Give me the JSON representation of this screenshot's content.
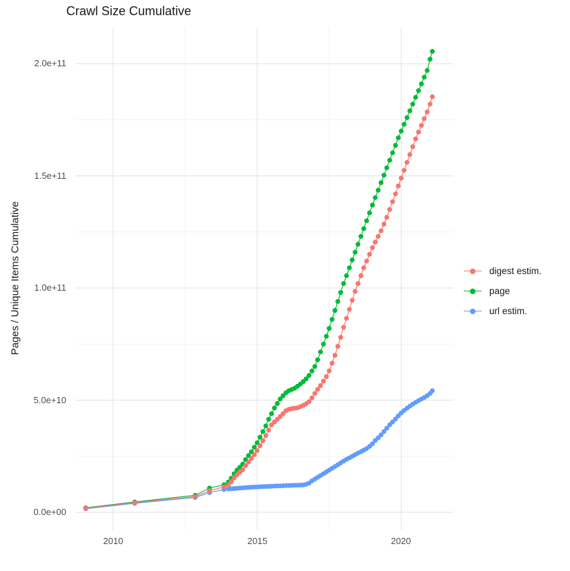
{
  "title": "Crawl Size Cumulative",
  "chart_data": {
    "type": "line",
    "title": "Crawl Size Cumulative",
    "xlabel": "",
    "ylabel": "Pages / Unique Items Cumulative",
    "legend_position": "right",
    "grid": "on",
    "values_unit": "1e9 (points stored in billions of pages / items)",
    "x_domain": [
      2008.71,
      2021.81
    ],
    "y_domain_e9": [
      -7.7,
      216.1
    ],
    "x_ticks": [
      {
        "v": 2010,
        "label": "2010"
      },
      {
        "v": 2015,
        "label": "2015"
      },
      {
        "v": 2020,
        "label": "2020"
      }
    ],
    "x_minor": [
      2012.5,
      2017.5
    ],
    "y_ticks": [
      {
        "v": 0,
        "label": "0.0e+00"
      },
      {
        "v": 50,
        "label": "5.0e+10"
      },
      {
        "v": 100,
        "label": "1.0e+11"
      },
      {
        "v": 150,
        "label": "1.5e+11"
      },
      {
        "v": 200,
        "label": "2.0e+11"
      }
    ],
    "y_minor": [
      25,
      75,
      125,
      175
    ],
    "draw_order": [
      2,
      1,
      0
    ],
    "series": [
      {
        "name": "digest estim.",
        "color": "#F8766D",
        "points": [
          [
            2009.05,
            1.8
          ],
          [
            2010.75,
            4.3
          ],
          [
            2012.85,
            7.0
          ],
          [
            2013.35,
            9.6
          ],
          [
            2013.85,
            11.4
          ],
          [
            2014.0,
            12.2
          ],
          [
            2014.1,
            13.6
          ],
          [
            2014.2,
            15.3
          ],
          [
            2014.3,
            16.7
          ],
          [
            2014.4,
            17.9
          ],
          [
            2014.5,
            19.0
          ],
          [
            2014.6,
            20.8
          ],
          [
            2014.7,
            22.4
          ],
          [
            2014.8,
            24.0
          ],
          [
            2014.9,
            25.7
          ],
          [
            2015.0,
            27.5
          ],
          [
            2015.1,
            29.7
          ],
          [
            2015.2,
            31.9
          ],
          [
            2015.3,
            34.2
          ],
          [
            2015.4,
            36.7
          ],
          [
            2015.5,
            39.0
          ],
          [
            2015.6,
            40.3
          ],
          [
            2015.7,
            41.5
          ],
          [
            2015.8,
            42.7
          ],
          [
            2015.9,
            44.0
          ],
          [
            2016.0,
            45.3
          ],
          [
            2016.1,
            45.9
          ],
          [
            2016.2,
            46.2
          ],
          [
            2016.3,
            46.4
          ],
          [
            2016.4,
            46.6
          ],
          [
            2016.5,
            47.1
          ],
          [
            2016.6,
            47.7
          ],
          [
            2016.7,
            48.4
          ],
          [
            2016.8,
            49.3
          ],
          [
            2016.9,
            51.0
          ],
          [
            2017.0,
            53.0
          ],
          [
            2017.1,
            54.8
          ],
          [
            2017.2,
            56.5
          ],
          [
            2017.3,
            58.5
          ],
          [
            2017.4,
            60.5
          ],
          [
            2017.5,
            63.0
          ],
          [
            2017.6,
            66.5
          ],
          [
            2017.7,
            70.0
          ],
          [
            2017.8,
            74.0
          ],
          [
            2017.9,
            78.0
          ],
          [
            2018.0,
            82.5
          ],
          [
            2018.1,
            86.5
          ],
          [
            2018.2,
            90.5
          ],
          [
            2018.3,
            94.5
          ],
          [
            2018.4,
            98.5
          ],
          [
            2018.5,
            102.0
          ],
          [
            2018.6,
            105.5
          ],
          [
            2018.7,
            109.0
          ],
          [
            2018.8,
            112.0
          ],
          [
            2018.9,
            115.0
          ],
          [
            2019.0,
            118.0
          ],
          [
            2019.1,
            120.5
          ],
          [
            2019.2,
            123.0
          ],
          [
            2019.3,
            125.5
          ],
          [
            2019.4,
            128.5
          ],
          [
            2019.5,
            131.5
          ],
          [
            2019.6,
            135.0
          ],
          [
            2019.7,
            138.5
          ],
          [
            2019.8,
            142.0
          ],
          [
            2019.9,
            145.5
          ],
          [
            2020.0,
            149.0
          ],
          [
            2020.1,
            152.5
          ],
          [
            2020.2,
            156.0
          ],
          [
            2020.3,
            159.5
          ],
          [
            2020.4,
            163.0
          ],
          [
            2020.5,
            166.5
          ],
          [
            2020.6,
            169.5
          ],
          [
            2020.7,
            172.5
          ],
          [
            2020.8,
            175.5
          ],
          [
            2020.9,
            178.5
          ],
          [
            2021.0,
            182.0
          ],
          [
            2021.08,
            185.3
          ]
        ]
      },
      {
        "name": "page",
        "color": "#00BA38",
        "points": [
          [
            2009.05,
            2.0
          ],
          [
            2010.75,
            4.6
          ],
          [
            2012.85,
            7.6
          ],
          [
            2013.35,
            10.8
          ],
          [
            2013.85,
            12.3
          ],
          [
            2014.0,
            13.5
          ],
          [
            2014.1,
            15.2
          ],
          [
            2014.2,
            17.2
          ],
          [
            2014.3,
            18.8
          ],
          [
            2014.4,
            20.1
          ],
          [
            2014.5,
            21.5
          ],
          [
            2014.6,
            23.5
          ],
          [
            2014.7,
            25.3
          ],
          [
            2014.8,
            27.0
          ],
          [
            2014.9,
            29.0
          ],
          [
            2015.0,
            31.0
          ],
          [
            2015.1,
            33.5
          ],
          [
            2015.2,
            36.0
          ],
          [
            2015.3,
            38.5
          ],
          [
            2015.4,
            41.5
          ],
          [
            2015.5,
            44.0
          ],
          [
            2015.6,
            46.5
          ],
          [
            2015.7,
            48.5
          ],
          [
            2015.8,
            50.5
          ],
          [
            2015.9,
            52.0
          ],
          [
            2016.0,
            53.3
          ],
          [
            2016.1,
            54.2
          ],
          [
            2016.2,
            54.8
          ],
          [
            2016.3,
            55.3
          ],
          [
            2016.4,
            56.2
          ],
          [
            2016.5,
            57.2
          ],
          [
            2016.6,
            58.3
          ],
          [
            2016.7,
            59.5
          ],
          [
            2016.8,
            61.0
          ],
          [
            2016.9,
            63.0
          ],
          [
            2017.0,
            65.0
          ],
          [
            2017.1,
            68.0
          ],
          [
            2017.2,
            71.5
          ],
          [
            2017.3,
            75.0
          ],
          [
            2017.4,
            78.5
          ],
          [
            2017.5,
            82.0
          ],
          [
            2017.6,
            86.0
          ],
          [
            2017.7,
            90.0
          ],
          [
            2017.8,
            94.0
          ],
          [
            2017.9,
            98.0
          ],
          [
            2018.0,
            102.0
          ],
          [
            2018.1,
            105.5
          ],
          [
            2018.2,
            109.0
          ],
          [
            2018.3,
            112.5
          ],
          [
            2018.4,
            116.0
          ],
          [
            2018.5,
            119.5
          ],
          [
            2018.6,
            123.0
          ],
          [
            2018.7,
            126.5
          ],
          [
            2018.8,
            130.0
          ],
          [
            2018.9,
            133.5
          ],
          [
            2019.0,
            137.0
          ],
          [
            2019.1,
            140.3
          ],
          [
            2019.2,
            143.6
          ],
          [
            2019.3,
            147.0
          ],
          [
            2019.4,
            150.3
          ],
          [
            2019.5,
            153.6
          ],
          [
            2019.6,
            157.0
          ],
          [
            2019.7,
            160.3
          ],
          [
            2019.8,
            163.6
          ],
          [
            2019.9,
            167.0
          ],
          [
            2020.0,
            170.0
          ],
          [
            2020.1,
            173.0
          ],
          [
            2020.2,
            176.0
          ],
          [
            2020.3,
            179.0
          ],
          [
            2020.4,
            182.0
          ],
          [
            2020.5,
            185.0
          ],
          [
            2020.6,
            188.0
          ],
          [
            2020.7,
            191.0
          ],
          [
            2020.8,
            194.0
          ],
          [
            2020.9,
            197.0
          ],
          [
            2021.0,
            202.0
          ],
          [
            2021.08,
            205.5
          ]
        ]
      },
      {
        "name": "url estim.",
        "color": "#619CFF",
        "points": [
          [
            2009.05,
            1.6
          ],
          [
            2010.75,
            4.0
          ],
          [
            2012.85,
            6.6
          ],
          [
            2013.35,
            8.8
          ],
          [
            2013.85,
            10.2
          ],
          [
            2014.0,
            10.4
          ],
          [
            2014.1,
            10.5
          ],
          [
            2014.2,
            10.6
          ],
          [
            2014.3,
            10.7
          ],
          [
            2014.4,
            10.8
          ],
          [
            2014.5,
            10.9
          ],
          [
            2014.6,
            11.0
          ],
          [
            2014.7,
            11.1
          ],
          [
            2014.8,
            11.2
          ],
          [
            2014.9,
            11.25
          ],
          [
            2015.0,
            11.3
          ],
          [
            2015.1,
            11.4
          ],
          [
            2015.2,
            11.45
          ],
          [
            2015.3,
            11.5
          ],
          [
            2015.4,
            11.55
          ],
          [
            2015.5,
            11.6
          ],
          [
            2015.6,
            11.7
          ],
          [
            2015.7,
            11.75
          ],
          [
            2015.8,
            11.8
          ],
          [
            2015.9,
            11.85
          ],
          [
            2016.0,
            11.9
          ],
          [
            2016.1,
            11.95
          ],
          [
            2016.2,
            12.0
          ],
          [
            2016.3,
            12.05
          ],
          [
            2016.4,
            12.1
          ],
          [
            2016.5,
            12.15
          ],
          [
            2016.6,
            12.2
          ],
          [
            2016.7,
            12.5
          ],
          [
            2016.8,
            13.0
          ],
          [
            2016.9,
            14.0
          ],
          [
            2017.0,
            14.8
          ],
          [
            2017.1,
            15.6
          ],
          [
            2017.2,
            16.4
          ],
          [
            2017.3,
            17.2
          ],
          [
            2017.4,
            18.0
          ],
          [
            2017.5,
            18.8
          ],
          [
            2017.6,
            19.6
          ],
          [
            2017.7,
            20.4
          ],
          [
            2017.8,
            21.2
          ],
          [
            2017.9,
            22.0
          ],
          [
            2018.0,
            22.8
          ],
          [
            2018.1,
            23.6
          ],
          [
            2018.2,
            24.3
          ],
          [
            2018.3,
            25.0
          ],
          [
            2018.4,
            25.7
          ],
          [
            2018.5,
            26.4
          ],
          [
            2018.6,
            27.0
          ],
          [
            2018.7,
            27.7
          ],
          [
            2018.8,
            28.4
          ],
          [
            2018.9,
            29.4
          ],
          [
            2019.0,
            30.5
          ],
          [
            2019.1,
            32.0
          ],
          [
            2019.2,
            33.2
          ],
          [
            2019.3,
            34.5
          ],
          [
            2019.4,
            36.0
          ],
          [
            2019.5,
            37.5
          ],
          [
            2019.6,
            39.0
          ],
          [
            2019.7,
            40.3
          ],
          [
            2019.8,
            41.6
          ],
          [
            2019.9,
            43.0
          ],
          [
            2020.0,
            44.3
          ],
          [
            2020.1,
            45.4
          ],
          [
            2020.2,
            46.4
          ],
          [
            2020.3,
            47.3
          ],
          [
            2020.4,
            48.2
          ],
          [
            2020.5,
            49.0
          ],
          [
            2020.6,
            49.8
          ],
          [
            2020.7,
            50.5
          ],
          [
            2020.8,
            51.2
          ],
          [
            2020.9,
            52.0
          ],
          [
            2021.0,
            53.0
          ],
          [
            2021.08,
            54.2
          ]
        ]
      }
    ]
  },
  "style": {
    "grid_major_color": "#e6e6e6",
    "grid_minor_color": "#f2f2f2",
    "background": "#ffffff"
  }
}
